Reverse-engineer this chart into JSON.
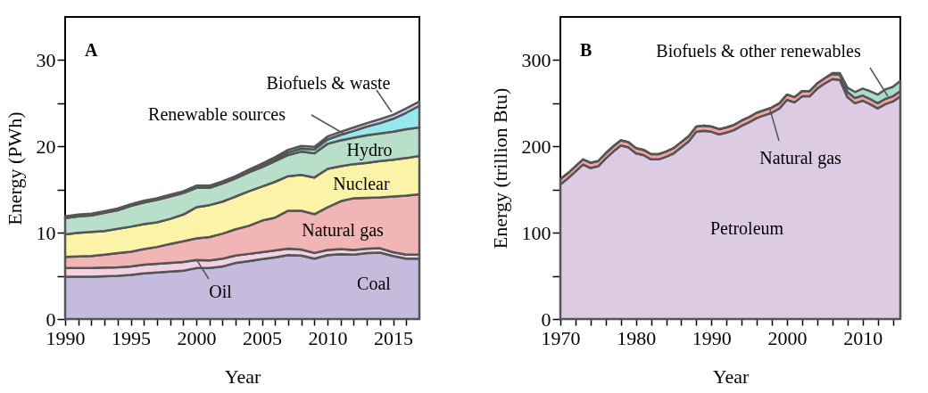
{
  "chart_data": [
    {
      "type": "area",
      "stacked": true,
      "title": "A",
      "xlabel": "Year",
      "ylabel": "Energy (PWh)",
      "grid": false,
      "x": [
        1990,
        1991,
        1992,
        1993,
        1994,
        1995,
        1996,
        1997,
        1998,
        1999,
        2000,
        2001,
        2002,
        2003,
        2004,
        2005,
        2006,
        2007,
        2008,
        2009,
        2010,
        2011,
        2012,
        2013,
        2014,
        2015,
        2016,
        2017
      ],
      "series": [
        {
          "name": "Coal",
          "color": "#c5bbdd",
          "values": [
            4.9,
            4.9,
            4.9,
            4.95,
            5.0,
            5.1,
            5.3,
            5.4,
            5.5,
            5.6,
            5.9,
            5.9,
            6.1,
            6.5,
            6.7,
            6.95,
            7.15,
            7.4,
            7.35,
            7.0,
            7.4,
            7.5,
            7.45,
            7.65,
            7.7,
            7.3,
            7.0,
            7.0
          ]
        },
        {
          "name": "Oil",
          "color": "#f0d2e4",
          "values": [
            1.0,
            1.0,
            1.0,
            1.0,
            1.0,
            1.0,
            1.0,
            1.0,
            1.0,
            1.0,
            0.95,
            0.9,
            0.9,
            0.85,
            0.85,
            0.8,
            0.8,
            0.75,
            0.7,
            0.65,
            0.6,
            0.6,
            0.55,
            0.5,
            0.5,
            0.45,
            0.45,
            0.45
          ]
        },
        {
          "name": "Natural gas",
          "color": "#f2b5b5",
          "values": [
            1.3,
            1.35,
            1.4,
            1.5,
            1.65,
            1.7,
            1.8,
            1.95,
            2.2,
            2.4,
            2.5,
            2.7,
            2.9,
            3.05,
            3.25,
            3.65,
            3.8,
            4.4,
            4.5,
            4.5,
            4.95,
            5.55,
            6.0,
            5.9,
            5.9,
            6.45,
            6.85,
            7.0
          ]
        },
        {
          "name": "Nuclear",
          "color": "#fbf4a8",
          "values": [
            2.6,
            2.75,
            2.8,
            2.75,
            2.8,
            2.9,
            2.9,
            2.85,
            2.9,
            3.1,
            3.6,
            3.7,
            3.7,
            3.8,
            4.0,
            3.95,
            4.15,
            4.0,
            4.15,
            4.25,
            4.45,
            4.05,
            3.95,
            4.05,
            4.2,
            4.25,
            4.35,
            4.45
          ]
        },
        {
          "name": "Hydro",
          "color": "#b8dfca",
          "values": [
            1.9,
            1.9,
            1.9,
            2.1,
            2.15,
            2.4,
            2.5,
            2.6,
            2.6,
            2.5,
            2.25,
            2.0,
            2.1,
            2.1,
            2.2,
            2.25,
            2.4,
            2.45,
            2.7,
            2.8,
            2.9,
            3.0,
            3.05,
            3.2,
            3.2,
            3.25,
            3.35,
            3.3
          ]
        },
        {
          "name": "Renewable sources",
          "color": "#99e8ee",
          "values": [
            0.05,
            0.05,
            0.05,
            0.05,
            0.05,
            0.05,
            0.05,
            0.05,
            0.05,
            0.05,
            0.05,
            0.05,
            0.05,
            0.05,
            0.1,
            0.15,
            0.2,
            0.3,
            0.35,
            0.45,
            0.5,
            0.65,
            0.8,
            1.0,
            1.2,
            1.5,
            1.9,
            2.5
          ]
        },
        {
          "name": "Biofuels & waste",
          "color": "#c9d2e8",
          "values": [
            0.15,
            0.15,
            0.15,
            0.15,
            0.15,
            0.15,
            0.15,
            0.15,
            0.15,
            0.15,
            0.2,
            0.2,
            0.2,
            0.2,
            0.2,
            0.25,
            0.25,
            0.3,
            0.3,
            0.3,
            0.35,
            0.35,
            0.4,
            0.4,
            0.45,
            0.45,
            0.5,
            0.5
          ]
        }
      ],
      "xlim": [
        1990,
        2017
      ],
      "ylim": [
        0,
        35
      ],
      "xticks": [
        1990,
        {
          "value": 1991,
          "label": null
        },
        {
          "value": 1992,
          "label": null
        },
        {
          "value": 1993,
          "label": null
        },
        {
          "value": 1994,
          "label": null
        },
        1995,
        {
          "value": 1996,
          "label": null
        },
        {
          "value": 1997,
          "label": null
        },
        {
          "value": 1998,
          "label": null
        },
        {
          "value": 1999,
          "label": null
        },
        2000,
        {
          "value": 2001,
          "label": null
        },
        {
          "value": 2002,
          "label": null
        },
        {
          "value": 2003,
          "label": null
        },
        {
          "value": 2004,
          "label": null
        },
        2005,
        {
          "value": 2006,
          "label": null
        },
        {
          "value": 2007,
          "label": null
        },
        {
          "value": 2008,
          "label": null
        },
        {
          "value": 2009,
          "label": null
        },
        2010,
        {
          "value": 2011,
          "label": null
        },
        {
          "value": 2012,
          "label": null
        },
        {
          "value": 2013,
          "label": null
        },
        {
          "value": 2014,
          "label": null
        },
        2015,
        {
          "value": 2016,
          "label": null
        }
      ],
      "yticks": [
        0,
        {
          "value": 5,
          "label": null
        },
        10,
        {
          "value": 15,
          "label": null
        },
        20,
        {
          "value": 25,
          "label": null
        },
        30
      ]
    },
    {
      "type": "area",
      "stacked": true,
      "title": "B",
      "xlabel": "Year",
      "ylabel": "Energy (trillion Btu)",
      "grid": false,
      "x": [
        1970,
        1971,
        1972,
        1973,
        1974,
        1975,
        1976,
        1977,
        1978,
        1979,
        1980,
        1981,
        1982,
        1983,
        1984,
        1985,
        1986,
        1987,
        1988,
        1989,
        1990,
        1991,
        1992,
        1993,
        1994,
        1995,
        1996,
        1997,
        1998,
        1999,
        2000,
        2001,
        2002,
        2003,
        2004,
        2005,
        2006,
        2007,
        2008,
        2009,
        2010,
        2011,
        2012,
        2013,
        2014,
        2015
      ],
      "series": [
        {
          "name": "Petroleum",
          "color": "#dccbe2",
          "values": [
            156,
            163,
            171,
            179,
            175,
            177,
            186,
            194,
            201,
            199,
            192,
            190,
            185,
            185,
            188,
            192,
            199,
            206,
            217,
            218,
            217,
            214,
            216,
            219,
            224,
            228,
            233,
            236,
            239,
            244,
            254,
            251,
            258,
            258,
            267,
            273,
            278,
            277,
            257,
            250,
            253,
            249,
            244,
            249,
            252,
            258
          ]
        },
        {
          "name": "Natural gas",
          "color": "#f7a2a6",
          "values": [
            6,
            6,
            6,
            6,
            6,
            6,
            6,
            6,
            6,
            6,
            6,
            6,
            6,
            6,
            6,
            6,
            6,
            6,
            6,
            6,
            6,
            6,
            6,
            6,
            6,
            6,
            6,
            6,
            6,
            6,
            6,
            6,
            6,
            6,
            6,
            6,
            6,
            6,
            6,
            6,
            6,
            6,
            6,
            6,
            6,
            6
          ]
        },
        {
          "name": "Biofuels & other renewables",
          "color": "#a8dccf",
          "values": [
            0,
            0,
            0,
            0,
            0,
            0,
            0,
            0,
            0,
            0,
            0,
            0,
            0,
            0,
            0,
            0,
            0,
            0,
            0,
            0,
            0,
            0,
            0,
            0,
            0,
            0,
            0,
            0,
            0,
            0,
            0,
            0,
            0,
            0,
            0,
            0,
            1,
            2,
            5,
            7,
            8,
            9,
            10,
            11,
            11,
            12
          ]
        }
      ],
      "xlim": [
        1970,
        2015
      ],
      "ylim": [
        0,
        350
      ],
      "xticks": [
        1970,
        {
          "value": 1972,
          "label": null
        },
        {
          "value": 1974,
          "label": null
        },
        {
          "value": 1976,
          "label": null
        },
        {
          "value": 1978,
          "label": null
        },
        1980,
        {
          "value": 1982,
          "label": null
        },
        {
          "value": 1984,
          "label": null
        },
        {
          "value": 1986,
          "label": null
        },
        {
          "value": 1988,
          "label": null
        },
        1990,
        {
          "value": 1992,
          "label": null
        },
        {
          "value": 1994,
          "label": null
        },
        {
          "value": 1996,
          "label": null
        },
        {
          "value": 1998,
          "label": null
        },
        2000,
        {
          "value": 2002,
          "label": null
        },
        {
          "value": 2004,
          "label": null
        },
        {
          "value": 2006,
          "label": null
        },
        {
          "value": 2008,
          "label": null
        },
        2010,
        {
          "value": 2012,
          "label": null
        },
        {
          "value": 2014,
          "label": null
        }
      ],
      "yticks": [
        0,
        {
          "value": 50,
          "label": null
        },
        100,
        {
          "value": 150,
          "label": null
        },
        200,
        {
          "value": 250,
          "label": null
        },
        300
      ]
    }
  ]
}
